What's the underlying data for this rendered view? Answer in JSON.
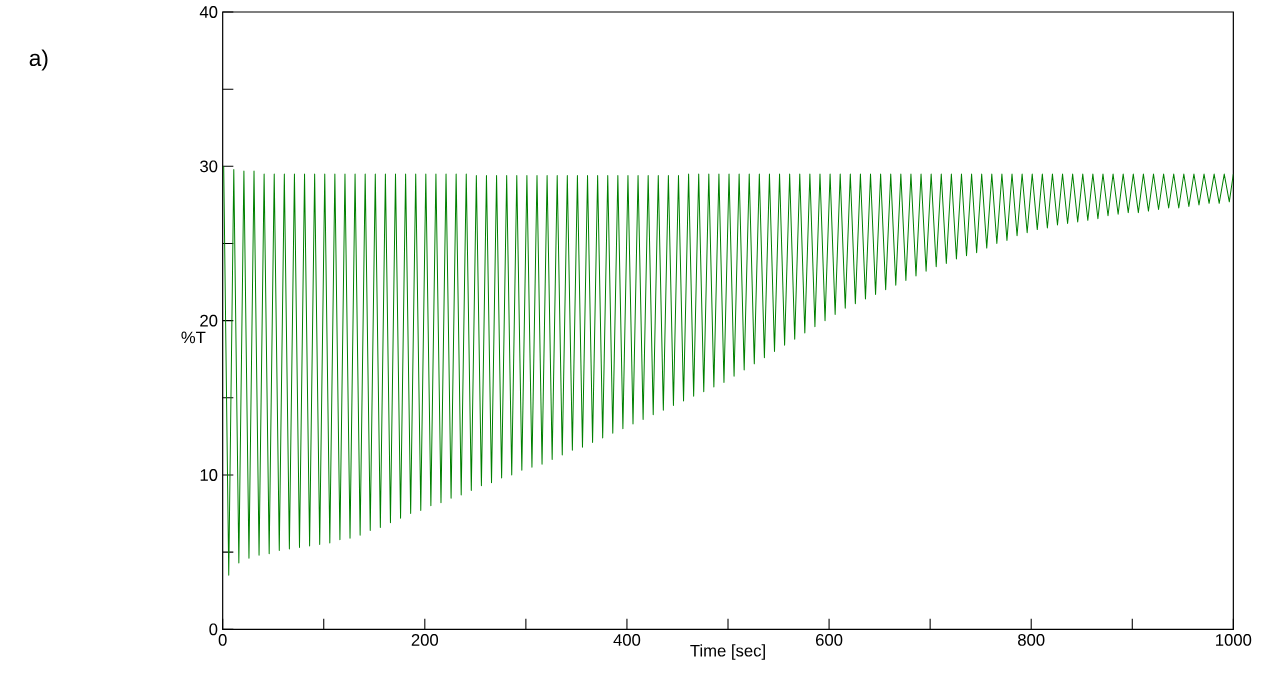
{
  "chart_data": {
    "type": "line",
    "xlabel": "Time [sec]",
    "ylabel": "%T",
    "annotations": [
      "a)"
    ],
    "x": [
      1,
      6,
      11,
      16,
      21,
      26,
      31,
      36,
      41,
      46,
      51,
      56,
      61,
      66,
      71,
      76,
      81,
      86,
      91,
      96,
      101,
      106,
      111,
      116,
      121,
      126,
      131,
      136,
      141,
      146,
      151,
      156,
      161,
      166,
      171,
      176,
      181,
      186,
      191,
      196,
      201,
      206,
      211,
      216,
      221,
      226,
      231,
      236,
      241,
      246,
      251,
      256,
      261,
      266,
      271,
      276,
      281,
      286,
      291,
      296,
      301,
      306,
      311,
      316,
      321,
      326,
      331,
      336,
      341,
      346,
      351,
      356,
      361,
      366,
      371,
      376,
      381,
      386,
      391,
      396,
      401,
      406,
      411,
      416,
      421,
      426,
      431,
      436,
      441,
      446,
      451,
      456,
      461,
      466,
      471,
      476,
      481,
      486,
      491,
      496,
      501,
      506,
      511,
      516,
      521,
      526,
      531,
      536,
      541,
      546,
      551,
      556,
      561,
      566,
      571,
      576,
      581,
      586,
      591,
      596,
      601,
      606,
      611,
      616,
      621,
      626,
      631,
      636,
      641,
      646,
      651,
      656,
      661,
      666,
      671,
      676,
      681,
      686,
      691,
      696,
      701,
      706,
      711,
      716,
      721,
      726,
      731,
      736,
      741,
      746,
      751,
      756,
      761,
      766,
      771,
      776,
      781,
      786,
      791,
      796,
      801,
      806,
      811,
      816,
      821,
      826,
      831,
      836,
      841,
      846,
      851,
      856,
      861,
      866,
      871,
      876,
      881,
      886,
      891,
      896,
      901,
      906,
      911,
      916,
      921,
      926,
      931,
      936,
      941,
      946,
      951,
      956,
      961,
      966,
      971,
      976,
      981,
      986,
      991,
      996,
      1000
    ],
    "series": [
      {
        "color": "#008000",
        "values": [
          30.0,
          3.5,
          29.8,
          4.3,
          29.7,
          4.6,
          29.7,
          4.8,
          29.5,
          4.9,
          29.5,
          5.1,
          29.5,
          5.2,
          29.5,
          5.3,
          29.5,
          5.4,
          29.5,
          5.5,
          29.5,
          5.6,
          29.5,
          5.8,
          29.5,
          5.9,
          29.5,
          6.1,
          29.5,
          6.4,
          29.5,
          6.6,
          29.5,
          6.9,
          29.5,
          7.2,
          29.5,
          7.5,
          29.5,
          7.7,
          29.5,
          8.0,
          29.5,
          8.2,
          29.5,
          8.5,
          29.5,
          8.7,
          29.5,
          9.0,
          29.4,
          9.3,
          29.4,
          9.5,
          29.4,
          9.8,
          29.4,
          10.0,
          29.4,
          10.3,
          29.4,
          10.5,
          29.4,
          10.7,
          29.4,
          11.0,
          29.4,
          11.3,
          29.4,
          11.6,
          29.4,
          11.8,
          29.4,
          12.1,
          29.4,
          12.4,
          29.4,
          12.7,
          29.4,
          13.0,
          29.4,
          13.3,
          29.4,
          13.6,
          29.4,
          13.9,
          29.4,
          14.2,
          29.4,
          14.5,
          29.4,
          14.8,
          29.5,
          15.1,
          29.5,
          15.4,
          29.5,
          15.7,
          29.5,
          16.0,
          29.5,
          16.4,
          29.5,
          16.8,
          29.5,
          17.2,
          29.5,
          17.6,
          29.5,
          18.0,
          29.5,
          18.4,
          29.5,
          18.8,
          29.5,
          19.2,
          29.5,
          19.6,
          29.5,
          20.0,
          29.5,
          20.4,
          29.5,
          20.8,
          29.5,
          21.1,
          29.5,
          21.4,
          29.5,
          21.7,
          29.5,
          22.0,
          29.5,
          22.3,
          29.5,
          22.6,
          29.5,
          22.9,
          29.5,
          23.2,
          29.5,
          23.5,
          29.5,
          23.7,
          29.5,
          24.0,
          29.5,
          24.2,
          29.5,
          24.4,
          29.5,
          24.7,
          29.5,
          25.0,
          29.5,
          25.2,
          29.5,
          25.5,
          29.5,
          25.7,
          29.5,
          25.9,
          29.5,
          26.0,
          29.5,
          26.2,
          29.5,
          26.3,
          29.5,
          26.4,
          29.5,
          26.5,
          29.5,
          26.6,
          29.5,
          26.8,
          29.5,
          26.9,
          29.5,
          27.0,
          29.5,
          27.0,
          29.5,
          27.1,
          29.5,
          27.2,
          29.5,
          27.3,
          29.5,
          27.3,
          29.5,
          27.4,
          29.5,
          27.5,
          29.5,
          27.6,
          29.5,
          27.6,
          29.5,
          27.7,
          29.5
        ]
      }
    ],
    "xlim": [
      0,
      1000
    ],
    "ylim": [
      0,
      40
    ],
    "xticks": [
      0,
      {
        "value": 100,
        "label": null
      },
      200,
      {
        "value": 300,
        "label": null
      },
      400,
      {
        "value": 500,
        "label": null
      },
      600,
      {
        "value": 700,
        "label": null
      },
      800,
      {
        "value": 900,
        "label": null
      },
      1000
    ],
    "yticks": [
      0,
      {
        "value": 5,
        "label": null
      },
      10,
      {
        "value": 15,
        "label": null
      },
      20,
      {
        "value": 25,
        "label": null
      },
      30,
      {
        "value": 35,
        "label": null
      },
      40
    ]
  }
}
